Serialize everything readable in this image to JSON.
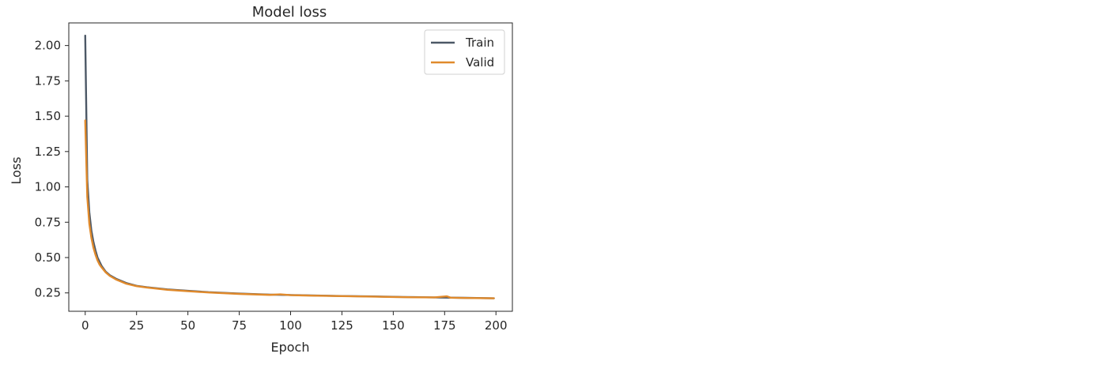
{
  "chart_data": {
    "type": "line",
    "title": "Model loss",
    "xlabel": "Epoch",
    "ylabel": "Loss",
    "xlim": [
      -8,
      208
    ],
    "ylim": [
      0.12,
      2.16
    ],
    "xticks": [
      0,
      25,
      50,
      75,
      100,
      125,
      150,
      175,
      200
    ],
    "yticks": [
      0.25,
      0.5,
      0.75,
      1.0,
      1.25,
      1.5,
      1.75,
      2.0
    ],
    "xtick_labels": [
      "0",
      "25",
      "50",
      "75",
      "100",
      "125",
      "150",
      "175",
      "200"
    ],
    "ytick_labels": [
      "0.25",
      "0.50",
      "0.75",
      "1.00",
      "1.25",
      "1.50",
      "1.75",
      "2.00"
    ],
    "grid": false,
    "legend_position": "top-right",
    "series": [
      {
        "name": "Train",
        "color": "#4c5866",
        "x": [
          0,
          1,
          2,
          3,
          4,
          5,
          6,
          7,
          8,
          10,
          12,
          15,
          20,
          25,
          30,
          40,
          50,
          60,
          75,
          90,
          100,
          110,
          125,
          140,
          150,
          160,
          175,
          185,
          199
        ],
        "y": [
          2.07,
          1.05,
          0.82,
          0.69,
          0.61,
          0.55,
          0.5,
          0.47,
          0.44,
          0.4,
          0.375,
          0.35,
          0.32,
          0.3,
          0.29,
          0.275,
          0.265,
          0.255,
          0.245,
          0.238,
          0.235,
          0.232,
          0.228,
          0.225,
          0.222,
          0.22,
          0.217,
          0.215,
          0.212
        ]
      },
      {
        "name": "Valid",
        "color": "#e08a2c",
        "x": [
          0,
          1,
          2,
          3,
          4,
          5,
          6,
          7,
          8,
          10,
          12,
          15,
          20,
          25,
          30,
          40,
          50,
          60,
          75,
          90,
          95,
          100,
          110,
          125,
          140,
          150,
          160,
          170,
          176,
          178,
          185,
          199
        ],
        "y": [
          1.47,
          0.93,
          0.74,
          0.64,
          0.57,
          0.52,
          0.48,
          0.45,
          0.43,
          0.395,
          0.37,
          0.345,
          0.315,
          0.298,
          0.288,
          0.272,
          0.262,
          0.253,
          0.243,
          0.236,
          0.24,
          0.234,
          0.231,
          0.227,
          0.224,
          0.221,
          0.219,
          0.218,
          0.226,
          0.216,
          0.214,
          0.212
        ]
      }
    ]
  }
}
